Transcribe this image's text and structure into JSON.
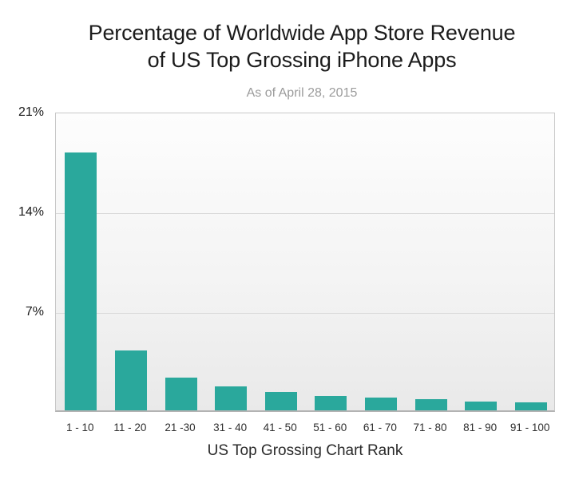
{
  "header": {
    "title": "Percentage of Worldwide App Store Revenue\nof US Top Grossing iPhone Apps",
    "subtitle": "As of April 28, 2015"
  },
  "chart_data": {
    "type": "bar",
    "title": "Percentage of Worldwide App Store Revenue of US Top Grossing iPhone Apps",
    "subtitle": "As of April 28, 2015",
    "categories": [
      "1 - 10",
      "11 - 20",
      "21 -30",
      "31 - 40",
      "41 - 50",
      "51 - 60",
      "61 - 70",
      "71 - 80",
      "81 - 90",
      "91 - 100"
    ],
    "values": [
      18.1,
      4.2,
      2.3,
      1.7,
      1.3,
      1.0,
      0.9,
      0.8,
      0.6,
      0.55
    ],
    "xlabel": "US Top Grossing Chart Rank",
    "ylabel": "",
    "ylim": [
      0,
      21
    ],
    "yticks": [
      {
        "value": 21,
        "label": "21%"
      },
      {
        "value": 14,
        "label": "14%"
      },
      {
        "value": 7,
        "label": "7%"
      }
    ],
    "gridline_values": [
      14,
      7
    ],
    "grid": true,
    "legend": null,
    "colors": {
      "bar": "#2aa89c",
      "plot_background_top": "#fdfdfd",
      "plot_background_bottom": "#e9e9e9",
      "plot_border": "#c8c8c8",
      "axis_line": "#b3b3b3",
      "gridline": "#d9d9d9",
      "title_text": "#1c1c1c",
      "subtitle_text": "#9b9b9b",
      "tick_text": "#1a1a1a"
    }
  }
}
